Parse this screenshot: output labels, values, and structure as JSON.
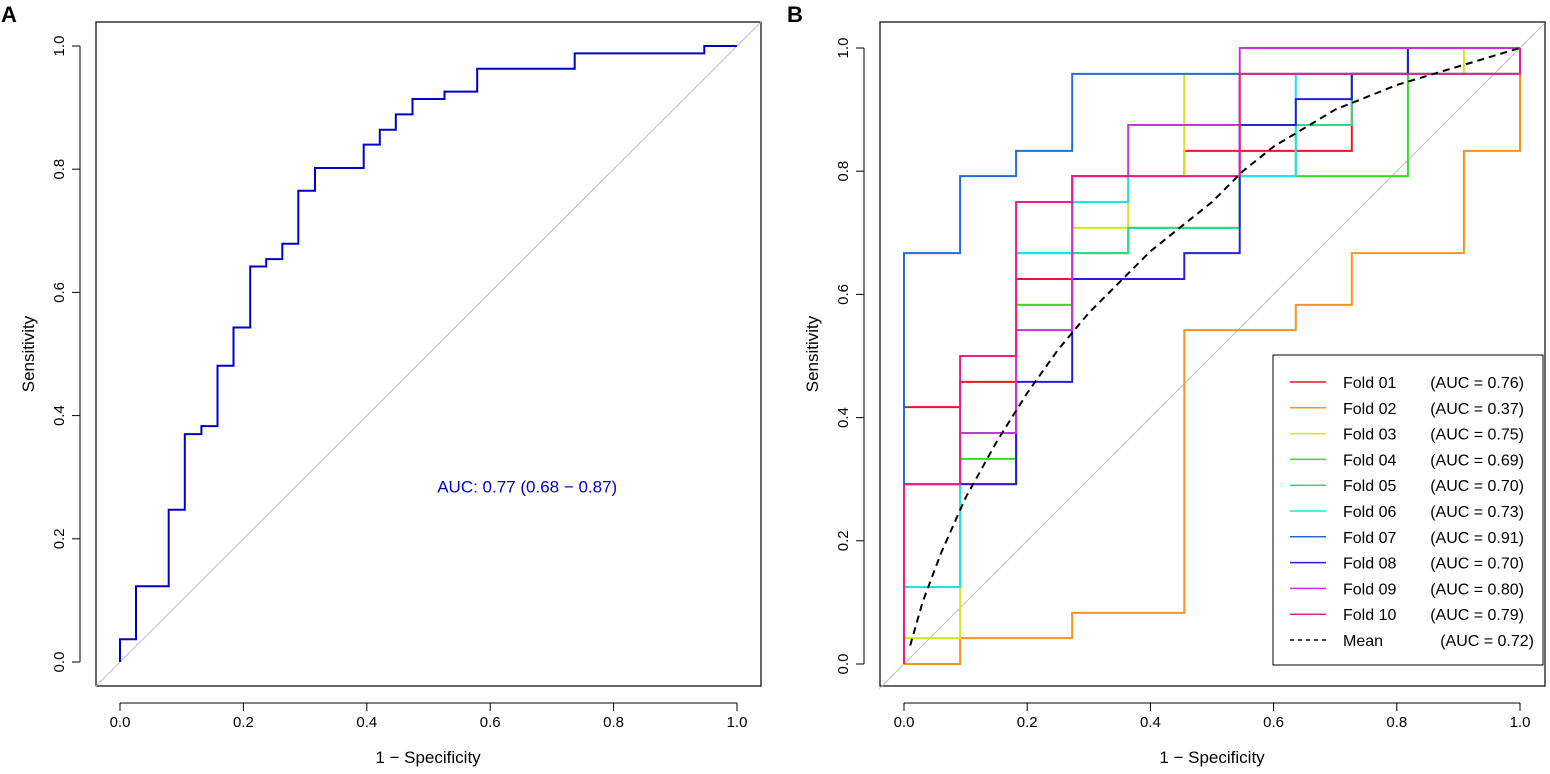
{
  "chart_data": [
    {
      "panel_label": "A",
      "type": "line",
      "title": "",
      "xlabel": "1 − Specificity",
      "ylabel": "Sensitivity",
      "xlim": [
        -0.04,
        1.04
      ],
      "ylim": [
        -0.04,
        1.04
      ],
      "xticks": [
        "0.0",
        "0.2",
        "0.4",
        "0.6",
        "0.8",
        "1.0"
      ],
      "yticks": [
        "0.0",
        "0.2",
        "0.4",
        "0.6",
        "0.8",
        "1.0"
      ],
      "grid": false,
      "annotation": "AUC: 0.77 (0.68 − 0.87)",
      "annotation_at": [
        0.66,
        0.285
      ],
      "reference_line": {
        "from": [
          0,
          0
        ],
        "to": [
          1,
          1
        ],
        "color": "#bebebe"
      },
      "series": [
        {
          "name": "ROC",
          "color": "#0000cc",
          "points": [
            [
              0,
              0
            ],
            [
              0,
              0.037
            ],
            [
              0.026,
              0.037
            ],
            [
              0.026,
              0.123
            ],
            [
              0.079,
              0.123
            ],
            [
              0.079,
              0.247
            ],
            [
              0.105,
              0.247
            ],
            [
              0.105,
              0.37
            ],
            [
              0.132,
              0.37
            ],
            [
              0.132,
              0.383
            ],
            [
              0.158,
              0.383
            ],
            [
              0.158,
              0.481
            ],
            [
              0.184,
              0.481
            ],
            [
              0.184,
              0.543
            ],
            [
              0.211,
              0.543
            ],
            [
              0.211,
              0.642
            ],
            [
              0.237,
              0.642
            ],
            [
              0.237,
              0.654
            ],
            [
              0.263,
              0.654
            ],
            [
              0.263,
              0.679
            ],
            [
              0.289,
              0.679
            ],
            [
              0.289,
              0.765
            ],
            [
              0.316,
              0.765
            ],
            [
              0.316,
              0.802
            ],
            [
              0.395,
              0.802
            ],
            [
              0.395,
              0.84
            ],
            [
              0.421,
              0.84
            ],
            [
              0.421,
              0.864
            ],
            [
              0.447,
              0.864
            ],
            [
              0.447,
              0.889
            ],
            [
              0.474,
              0.889
            ],
            [
              0.474,
              0.914
            ],
            [
              0.526,
              0.914
            ],
            [
              0.526,
              0.926
            ],
            [
              0.579,
              0.926
            ],
            [
              0.579,
              0.963
            ],
            [
              0.737,
              0.963
            ],
            [
              0.737,
              0.988
            ],
            [
              0.947,
              0.988
            ],
            [
              0.947,
              1.0
            ],
            [
              1.0,
              1.0
            ]
          ]
        }
      ]
    },
    {
      "panel_label": "B",
      "type": "line",
      "title": "",
      "xlabel": "1 − Specificity",
      "ylabel": "Sensitivity",
      "xlim": [
        -0.04,
        1.04
      ],
      "ylim": [
        -0.04,
        1.04
      ],
      "xticks": [
        "0.0",
        "0.2",
        "0.4",
        "0.6",
        "0.8",
        "1.0"
      ],
      "yticks": [
        "0.0",
        "0.2",
        "0.4",
        "0.6",
        "0.8",
        "1.0"
      ],
      "grid": false,
      "legend_position": "bottom-right",
      "reference_line": {
        "from": [
          0,
          0
        ],
        "to": [
          1,
          1
        ],
        "color": "#bebebe"
      },
      "series": [
        {
          "name": "Fold 01",
          "auc_label": "(AUC = 0.76)",
          "color": "#e41a1c",
          "dashed": false,
          "points": [
            [
              0,
              0
            ],
            [
              0,
              0.417
            ],
            [
              0.091,
              0.417
            ],
            [
              0.091,
              0.458
            ],
            [
              0.182,
              0.458
            ],
            [
              0.182,
              0.625
            ],
            [
              0.273,
              0.625
            ],
            [
              0.273,
              0.792
            ],
            [
              0.455,
              0.792
            ],
            [
              0.455,
              0.833
            ],
            [
              0.727,
              0.833
            ],
            [
              0.727,
              0.958
            ],
            [
              1,
              0.958
            ],
            [
              1,
              1
            ]
          ]
        },
        {
          "name": "Fold 02",
          "auc_label": "(AUC = 0.37)",
          "color": "#f7941d",
          "dashed": false,
          "points": [
            [
              0,
              0
            ],
            [
              0.091,
              0
            ],
            [
              0.091,
              0.042
            ],
            [
              0.273,
              0.042
            ],
            [
              0.273,
              0.083
            ],
            [
              0.455,
              0.083
            ],
            [
              0.455,
              0.542
            ],
            [
              0.636,
              0.542
            ],
            [
              0.636,
              0.583
            ],
            [
              0.727,
              0.583
            ],
            [
              0.727,
              0.667
            ],
            [
              0.909,
              0.667
            ],
            [
              0.909,
              0.833
            ],
            [
              1,
              0.833
            ],
            [
              1,
              1
            ]
          ]
        },
        {
          "name": "Fold 03",
          "auc_label": "(AUC = 0.75)",
          "color": "#d4e61e",
          "dashed": false,
          "points": [
            [
              0,
              0
            ],
            [
              0,
              0.042
            ],
            [
              0.091,
              0.042
            ],
            [
              0.091,
              0.292
            ],
            [
              0.182,
              0.292
            ],
            [
              0.182,
              0.583
            ],
            [
              0.273,
              0.583
            ],
            [
              0.273,
              0.708
            ],
            [
              0.364,
              0.708
            ],
            [
              0.364,
              0.792
            ],
            [
              0.455,
              0.792
            ],
            [
              0.455,
              0.958
            ],
            [
              0.909,
              0.958
            ],
            [
              0.909,
              1
            ],
            [
              1,
              1
            ]
          ]
        },
        {
          "name": "Fold 04",
          "auc_label": "(AUC = 0.69)",
          "color": "#33dd22",
          "dashed": false,
          "points": [
            [
              0,
              0
            ],
            [
              0,
              0.292
            ],
            [
              0.091,
              0.292
            ],
            [
              0.091,
              0.333
            ],
            [
              0.182,
              0.333
            ],
            [
              0.182,
              0.583
            ],
            [
              0.273,
              0.583
            ],
            [
              0.273,
              0.667
            ],
            [
              0.364,
              0.667
            ],
            [
              0.364,
              0.708
            ],
            [
              0.545,
              0.708
            ],
            [
              0.545,
              0.792
            ],
            [
              0.818,
              0.792
            ],
            [
              0.818,
              1
            ],
            [
              1,
              1
            ]
          ]
        },
        {
          "name": "Fold 05",
          "auc_label": "(AUC = 0.70)",
          "color": "#22dd88",
          "dashed": false,
          "points": [
            [
              0,
              0
            ],
            [
              0,
              0.125
            ],
            [
              0.091,
              0.125
            ],
            [
              0.091,
              0.292
            ],
            [
              0.182,
              0.292
            ],
            [
              0.182,
              0.667
            ],
            [
              0.364,
              0.667
            ],
            [
              0.364,
              0.708
            ],
            [
              0.545,
              0.708
            ],
            [
              0.545,
              0.792
            ],
            [
              0.636,
              0.792
            ],
            [
              0.636,
              0.875
            ],
            [
              0.727,
              0.875
            ],
            [
              0.727,
              0.958
            ],
            [
              1,
              0.958
            ],
            [
              1,
              1
            ]
          ]
        },
        {
          "name": "Fold 06",
          "auc_label": "(AUC = 0.73)",
          "color": "#22e0e8",
          "dashed": false,
          "points": [
            [
              0,
              0
            ],
            [
              0,
              0.125
            ],
            [
              0.091,
              0.125
            ],
            [
              0.091,
              0.292
            ],
            [
              0.182,
              0.292
            ],
            [
              0.182,
              0.667
            ],
            [
              0.273,
              0.667
            ],
            [
              0.273,
              0.75
            ],
            [
              0.364,
              0.75
            ],
            [
              0.364,
              0.792
            ],
            [
              0.545,
              0.792
            ],
            [
              0.636,
              0.792
            ],
            [
              0.636,
              0.958
            ],
            [
              1,
              0.958
            ],
            [
              1,
              1
            ]
          ]
        },
        {
          "name": "Fold 07",
          "auc_label": "(AUC = 0.91)",
          "color": "#1f6fd6",
          "dashed": false,
          "points": [
            [
              0,
              0
            ],
            [
              0,
              0.667
            ],
            [
              0.091,
              0.667
            ],
            [
              0.091,
              0.792
            ],
            [
              0.182,
              0.792
            ],
            [
              0.182,
              0.833
            ],
            [
              0.273,
              0.833
            ],
            [
              0.273,
              0.958
            ],
            [
              0.818,
              0.958
            ],
            [
              0.818,
              1
            ],
            [
              1,
              1
            ]
          ]
        },
        {
          "name": "Fold 08",
          "auc_label": "(AUC = 0.70)",
          "color": "#2a1fcf",
          "dashed": false,
          "points": [
            [
              0,
              0
            ],
            [
              0,
              0.292
            ],
            [
              0.182,
              0.292
            ],
            [
              0.182,
              0.458
            ],
            [
              0.273,
              0.458
            ],
            [
              0.273,
              0.625
            ],
            [
              0.455,
              0.625
            ],
            [
              0.455,
              0.667
            ],
            [
              0.545,
              0.667
            ],
            [
              0.545,
              0.875
            ],
            [
              0.636,
              0.875
            ],
            [
              0.636,
              0.917
            ],
            [
              0.727,
              0.917
            ],
            [
              0.727,
              0.958
            ],
            [
              0.818,
              0.958
            ],
            [
              0.818,
              1
            ],
            [
              1,
              1
            ]
          ]
        },
        {
          "name": "Fold 09",
          "auc_label": "(AUC = 0.80)",
          "color": "#c436d8",
          "dashed": false,
          "points": [
            [
              0,
              0
            ],
            [
              0,
              0.292
            ],
            [
              0.091,
              0.292
            ],
            [
              0.091,
              0.375
            ],
            [
              0.182,
              0.375
            ],
            [
              0.182,
              0.542
            ],
            [
              0.273,
              0.542
            ],
            [
              0.273,
              0.792
            ],
            [
              0.364,
              0.792
            ],
            [
              0.364,
              0.875
            ],
            [
              0.545,
              0.875
            ],
            [
              0.545,
              1
            ],
            [
              1,
              1
            ]
          ]
        },
        {
          "name": "Fold 10",
          "auc_label": "(AUC = 0.79)",
          "color": "#ea1f8a",
          "dashed": false,
          "points": [
            [
              0,
              0
            ],
            [
              0,
              0.292
            ],
            [
              0.091,
              0.292
            ],
            [
              0.091,
              0.5
            ],
            [
              0.182,
              0.5
            ],
            [
              0.182,
              0.75
            ],
            [
              0.273,
              0.75
            ],
            [
              0.273,
              0.792
            ],
            [
              0.545,
              0.792
            ],
            [
              0.545,
              0.958
            ],
            [
              1,
              0.958
            ],
            [
              1,
              1
            ]
          ]
        },
        {
          "name": "Mean",
          "auc_label": "(AUC = 0.72)",
          "color": "#000000",
          "dashed": true,
          "points": [
            [
              0.01,
              0.03
            ],
            [
              0.03,
              0.1
            ],
            [
              0.06,
              0.18
            ],
            [
              0.1,
              0.27
            ],
            [
              0.15,
              0.36
            ],
            [
              0.2,
              0.44
            ],
            [
              0.25,
              0.51
            ],
            [
              0.3,
              0.57
            ],
            [
              0.35,
              0.62
            ],
            [
              0.4,
              0.67
            ],
            [
              0.45,
              0.71
            ],
            [
              0.5,
              0.75
            ],
            [
              0.55,
              0.8
            ],
            [
              0.6,
              0.84
            ],
            [
              0.65,
              0.87
            ],
            [
              0.7,
              0.9
            ],
            [
              0.75,
              0.92
            ],
            [
              0.8,
              0.94
            ],
            [
              0.85,
              0.955
            ],
            [
              0.9,
              0.97
            ],
            [
              0.95,
              0.985
            ],
            [
              1,
              1
            ]
          ]
        }
      ]
    }
  ]
}
